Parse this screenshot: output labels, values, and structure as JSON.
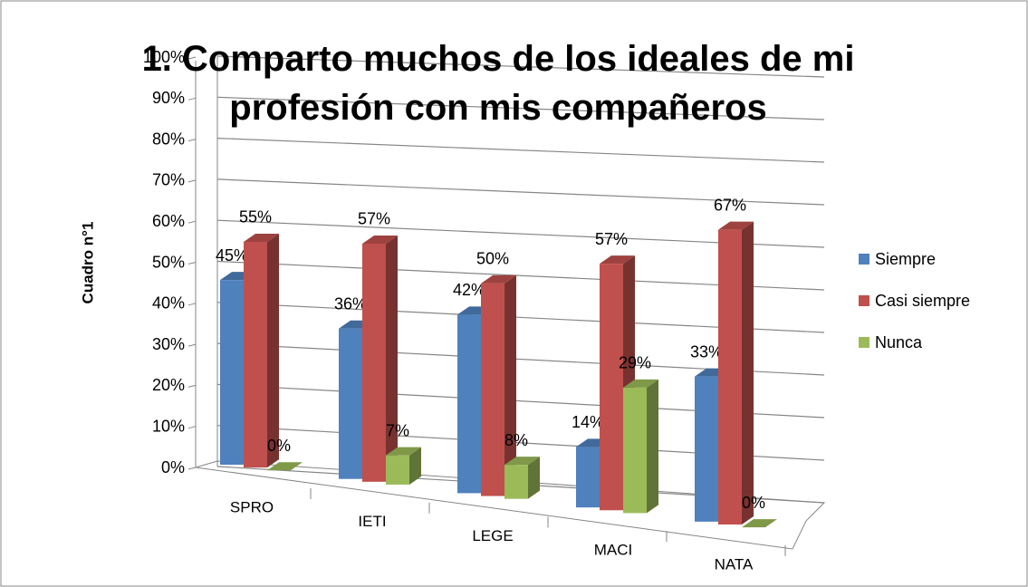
{
  "chart_data": {
    "type": "bar3d",
    "title": "1. Comparto muchos de los ideales de mi profesión con mis compañeros",
    "y_label": "Cuadro n°1",
    "categories": [
      "SPRO",
      "IETI",
      "LEGE",
      "MACI",
      "NATA"
    ],
    "series": [
      {
        "name": "Siempre",
        "color": "#4f81bd",
        "values": [
          45,
          36,
          42,
          14,
          33
        ],
        "value_labels": [
          "45%",
          "36%",
          "42%",
          "14%",
          "33%"
        ]
      },
      {
        "name": "Casi siempre",
        "color": "#c0504d",
        "values": [
          55,
          57,
          50,
          57,
          67
        ],
        "value_labels": [
          "55%",
          "57%",
          "50%",
          "57%",
          "67%"
        ]
      },
      {
        "name": "Nunca",
        "color": "#9bbb59",
        "values": [
          0,
          7,
          8,
          29,
          0
        ],
        "value_labels": [
          "0%",
          "7%",
          "8%",
          "29%",
          "0%"
        ]
      }
    ],
    "ylim": [
      0,
      100
    ],
    "yticks": [
      {
        "value": 0,
        "label": "0%"
      },
      {
        "value": 10,
        "label": "10%"
      },
      {
        "value": 20,
        "label": "20%"
      },
      {
        "value": 30,
        "label": "30%"
      },
      {
        "value": 40,
        "label": "40%"
      },
      {
        "value": 50,
        "label": "50%"
      },
      {
        "value": 60,
        "label": "60%"
      },
      {
        "value": 70,
        "label": "70%"
      },
      {
        "value": 80,
        "label": "80%"
      },
      {
        "value": 90,
        "label": "90%"
      },
      {
        "value": 100,
        "label": "100%"
      }
    ],
    "grid": true,
    "legend": "right"
  }
}
